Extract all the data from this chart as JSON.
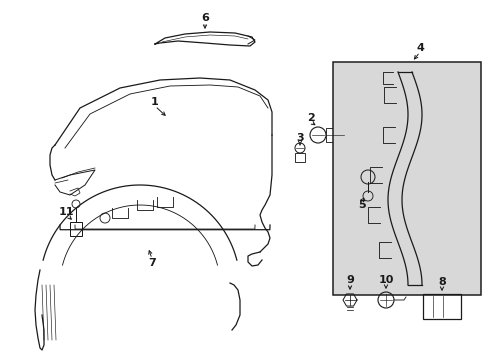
{
  "bg_color": "#ffffff",
  "line_color": "#1a1a1a",
  "box_bg": "#d8d8d8",
  "lw": 0.9,
  "fig_w": 4.89,
  "fig_h": 3.6,
  "dpi": 100
}
